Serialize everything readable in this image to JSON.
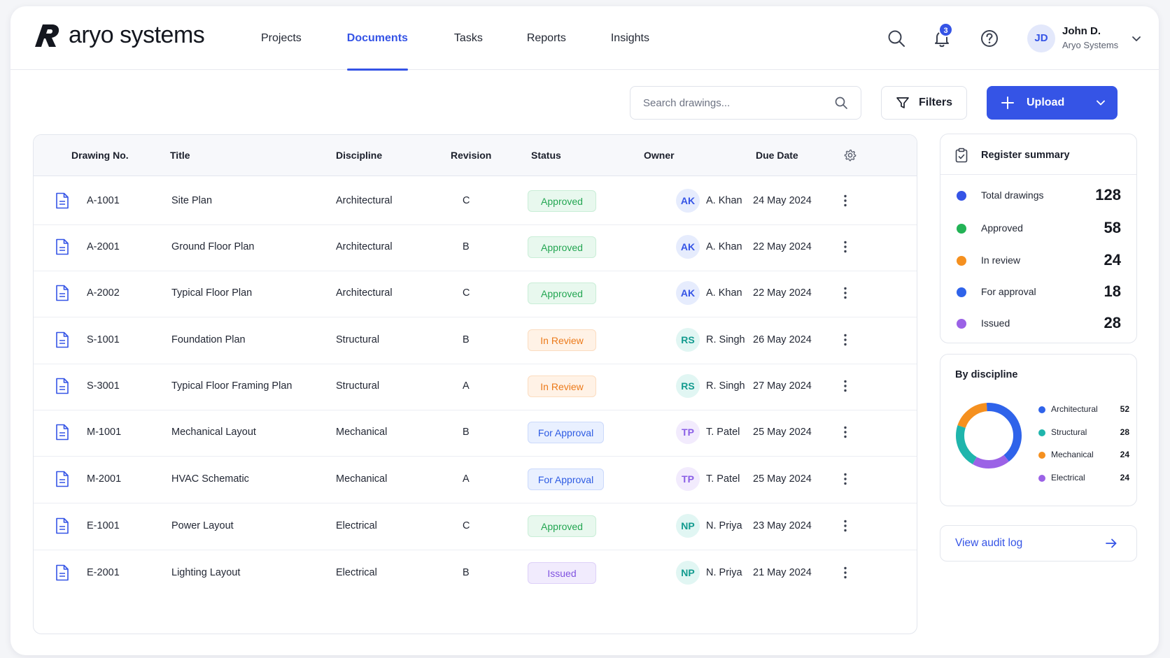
{
  "brand": {
    "name": "aryo systems"
  },
  "nav": [
    {
      "label": "Projects",
      "active": false
    },
    {
      "label": "Documents",
      "active": true
    },
    {
      "label": "Tasks",
      "active": false
    },
    {
      "label": "Reports",
      "active": false
    },
    {
      "label": "Insights",
      "active": false
    }
  ],
  "header": {
    "notification_count": "3",
    "user": {
      "initials": "JD",
      "name": "John D.",
      "org": "Aryo Systems"
    },
    "icons": [
      "search-icon",
      "bell-icon",
      "help-icon",
      "chevron-down-icon"
    ]
  },
  "toolbar": {
    "search_placeholder": "Search drawings...",
    "filters_label": "Filters",
    "upload_label": "Upload"
  },
  "table": {
    "columns": [
      "Drawing No.",
      "Title",
      "Discipline",
      "Revision",
      "Status",
      "Owner",
      "Due Date"
    ],
    "rows": [
      {
        "no": "A-1001",
        "title": "Site Plan",
        "discipline": "Architectural",
        "revision": "C",
        "status": "Approved",
        "owner_initials": "AK",
        "owner": "A. Khan",
        "due": "24 May 2024"
      },
      {
        "no": "A-2001",
        "title": "Ground Floor Plan",
        "discipline": "Architectural",
        "revision": "B",
        "status": "Approved",
        "owner_initials": "AK",
        "owner": "A. Khan",
        "due": "22 May 2024"
      },
      {
        "no": "A-2002",
        "title": "Typical Floor Plan",
        "discipline": "Architectural",
        "revision": "C",
        "status": "Approved",
        "owner_initials": "AK",
        "owner": "A. Khan",
        "due": "22 May 2024"
      },
      {
        "no": "S-1001",
        "title": "Foundation Plan",
        "discipline": "Structural",
        "revision": "B",
        "status": "In Review",
        "owner_initials": "RS",
        "owner": "R. Singh",
        "due": "26 May 2024"
      },
      {
        "no": "S-3001",
        "title": "Typical Floor Framing Plan",
        "discipline": "Structural",
        "revision": "A",
        "status": "In Review",
        "owner_initials": "RS",
        "owner": "R. Singh",
        "due": "27 May 2024"
      },
      {
        "no": "M-1001",
        "title": "Mechanical Layout",
        "discipline": "Mechanical",
        "revision": "B",
        "status": "For Approval",
        "owner_initials": "TP",
        "owner": "T. Patel",
        "due": "25 May 2024"
      },
      {
        "no": "M-2001",
        "title": "HVAC Schematic",
        "discipline": "Mechanical",
        "revision": "A",
        "status": "For Approval",
        "owner_initials": "TP",
        "owner": "T. Patel",
        "due": "25 May 2024"
      },
      {
        "no": "E-1001",
        "title": "Power Layout",
        "discipline": "Electrical",
        "revision": "C",
        "status": "Approved",
        "owner_initials": "NP",
        "owner": "N. Priya",
        "due": "23 May 2024"
      },
      {
        "no": "E-2001",
        "title": "Lighting Layout",
        "discipline": "Electrical",
        "revision": "B",
        "status": "Issued",
        "owner_initials": "NP",
        "owner": "N. Priya",
        "due": "21 May 2024"
      }
    ]
  },
  "summary": {
    "title": "Register summary",
    "items": [
      {
        "label": "Total drawings",
        "value": "128",
        "color": "#3554e6"
      },
      {
        "label": "Approved",
        "value": "58",
        "color": "#23b356"
      },
      {
        "label": "In review",
        "value": "24",
        "color": "#f5901f"
      },
      {
        "label": "For approval",
        "value": "18",
        "color": "#2f63ea"
      },
      {
        "label": "Issued",
        "value": "28",
        "color": "#9b62e6"
      }
    ]
  },
  "discipline": {
    "title": "By discipline",
    "items": [
      {
        "label": "Architectural",
        "value": 52,
        "color": "#2f63ea"
      },
      {
        "label": "Structural",
        "value": 28,
        "color": "#1fb5ac"
      },
      {
        "label": "Mechanical",
        "value": 24,
        "color": "#f5901f"
      },
      {
        "label": "Electrical",
        "value": 24,
        "color": "#9b62e6"
      }
    ]
  },
  "audit": {
    "label": "View audit log"
  },
  "colors": {
    "accent": "#3554e6"
  }
}
